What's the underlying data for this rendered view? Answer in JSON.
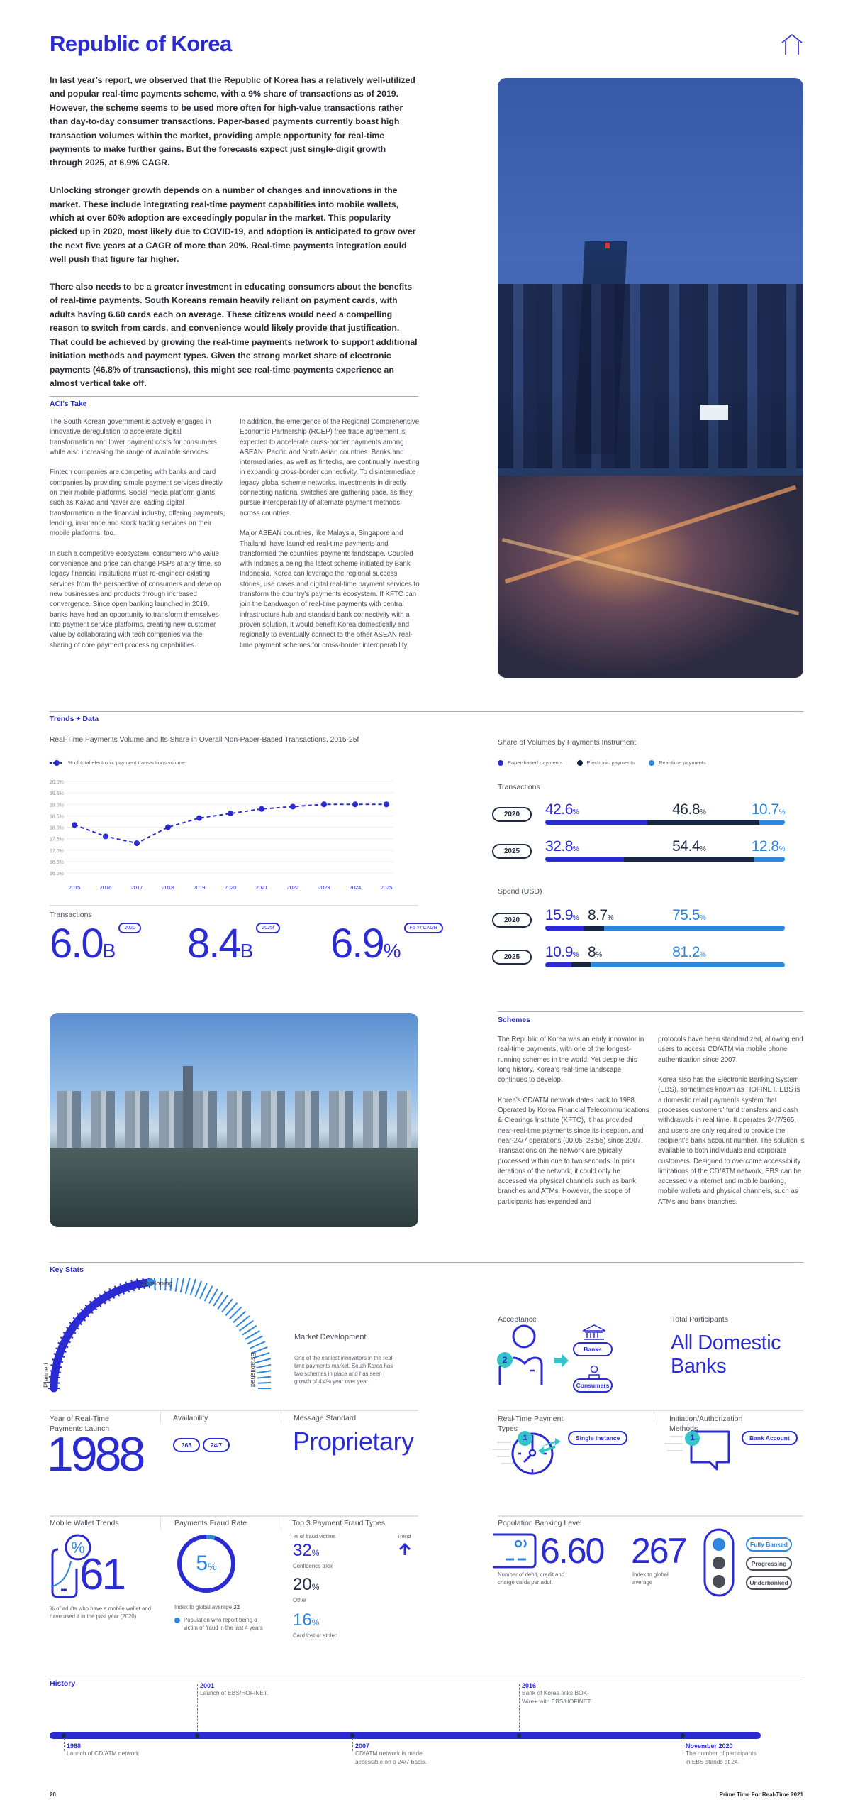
{
  "title": "Republic of Korea",
  "icons": {
    "top_right": "house-outline-icon"
  },
  "intro": [
    "In last year’s report, we observed that the Republic of Korea has a relatively well-utilized and popular real-time payments scheme, with a 9% share of transactions as of 2019. However, the scheme seems to be used more often for high-value transactions rather than day-to-day consumer transactions. Paper-based payments currently boast high transaction volumes within the market, providing ample opportunity for real-time payments to make further gains. But the forecasts expect just single-digit growth through 2025, at 6.9% CAGR.",
    "Unlocking stronger growth depends on a number of changes and innovations in the market. These include integrating real-time payment capabilities into mobile wallets, which at over 60% adoption are exceedingly popular in the market. This popularity picked up in 2020, most likely due to COVID-19, and adoption is anticipated to grow over the next five years at a CAGR of more than 20%. Real-time payments integration could well push that figure far higher.",
    "There also needs to be a greater investment in educating consumers about the benefits of real-time payments. South Koreans remain heavily reliant on payment cards, with adults having 6.60 cards each on average. These citizens would need a compelling reason to switch from cards, and convenience would likely provide that justification. That could be achieved by growing the real-time payments network to support additional initiation methods and payment types. Given the strong market share of electronic payments (46.8% of transactions), this might see real-time payments experience an almost vertical take off."
  ],
  "aci": {
    "heading": "ACI’s Take",
    "col1": [
      "The South Korean government is actively engaged in innovative deregulation to accelerate digital transformation and lower payment costs for consumers, while also increasing the range of available services.",
      "Fintech companies are competing with banks and card companies by providing simple payment services directly on their mobile platforms. Social media platform giants such as Kakao and Naver are leading digital transformation in the financial industry, offering payments, lending, insurance and stock trading services on their mobile platforms, too.",
      "In such a competitive ecosystem, consumers who value convenience and price can change PSPs at any time, so legacy financial institutions must re-engineer existing services from the perspective of consumers and develop new businesses and products through increased convergence. Since open banking launched in 2019, banks have had an opportunity to transform themselves into payment service platforms, creating new customer value by collaborating with tech companies via the sharing of core payment processing capabilities."
    ],
    "col2": [
      "In addition, the emergence of the Regional Comprehensive Economic Partnership (RCEP) free trade agreement is expected to accelerate cross-border payments among ASEAN, Pacific and North Asian countries. Banks and intermediaries, as well as fintechs, are continually investing in expanding cross-border connectivity. To disintermediate legacy global scheme networks, investments in directly connecting national switches are gathering pace, as they pursue interoperability of alternate payment methods across countries.",
      "Major ASEAN countries, like Malaysia, Singapore and Thailand, have launched real-time payments and transformed the countries’ payments landscape. Coupled with Indonesia being the latest scheme initiated by Bank Indonesia, Korea can leverage the regional success stories, use cases and digital real-time payment services to transform the country’s payments ecosystem. If KFTC can join the bandwagon of real-time payments with central infrastructure hub and standard bank connectivity with a proven solution, it would benefit Korea domestically and regionally to eventually connect to the other ASEAN real-time payment schemes for cross-border interoperability."
    ]
  },
  "trends": {
    "heading": "Trends + Data"
  },
  "chart_data": [
    {
      "type": "line",
      "title": "Real-Time Payments Volume and Its Share in Overall Non-Paper-Based Transactions, 2015-25f",
      "x": [
        "2015",
        "2016",
        "2017",
        "2018",
        "2019",
        "2020",
        "2021",
        "2022",
        "2023",
        "2024",
        "2025"
      ],
      "series": [
        {
          "name": "% of total electronic payment transactions volume",
          "values": [
            18.1,
            17.6,
            17.3,
            18.0,
            18.4,
            18.6,
            18.8,
            18.9,
            19.0,
            19.0,
            19.0
          ]
        }
      ],
      "yticks": [
        "20.0%",
        "19.5%",
        "19.0%",
        "18.5%",
        "18.0%",
        "17.5%",
        "17.0%",
        "16.5%",
        "16.0%"
      ],
      "ylim": [
        16.0,
        20.0
      ],
      "grid": true,
      "legend": "top-left",
      "line_style": "dashed",
      "color": "#2b2bd3"
    },
    {
      "type": "bar",
      "stacked": true,
      "orientation": "horizontal",
      "title": "Share of Volumes by Payments Instrument",
      "legend": [
        {
          "name": "Paper-based payments",
          "color": "#2b2bd3"
        },
        {
          "name": "Electronic payments",
          "color": "#172644"
        },
        {
          "name": "Real-time payments",
          "color": "#2e86de"
        }
      ],
      "groups": [
        {
          "name": "Transactions",
          "rows": [
            {
              "year": "2020",
              "values": [
                42.6,
                46.8,
                10.7
              ]
            },
            {
              "year": "2025",
              "values": [
                32.8,
                54.4,
                12.8
              ]
            }
          ]
        },
        {
          "name": "Spend (USD)",
          "rows": [
            {
              "year": "2020",
              "values": [
                15.9,
                8.7,
                75.5
              ]
            },
            {
              "year": "2025",
              "values": [
                10.9,
                8.0,
                81.2
              ]
            }
          ]
        }
      ],
      "unit": "%"
    }
  ],
  "transactions": {
    "label": "Transactions",
    "stats": [
      {
        "value": "6.0",
        "unit": "B",
        "tag": "2020"
      },
      {
        "value": "8.4",
        "unit": "B",
        "tag": "2025f"
      },
      {
        "value": "6.9",
        "unit": "%",
        "tag": "F5 Yr CAGR"
      }
    ]
  },
  "schemes": {
    "heading": "Schemes",
    "col1": [
      "The Republic of Korea was an early innovator in real-time payments, with one of the longest-running schemes in the world. Yet despite this long history, Korea’s real-time landscape continues to develop.",
      "Korea’s CD/ATM network dates back to 1988. Operated by Korea Financial Telecommunications & Clearings Institute (KFTC), it has provided near-real-time payments since its inception, and near-24/7 operations (00:05–23:55) since 2007. Transactions on the network are typically processed within one to two seconds. In prior iterations of the network, it could only be accessed via physical channels such as bank branches and ATMs. However, the scope of participants has expanded and"
    ],
    "col2": [
      "protocols have been standardized, allowing end users to access CD/ATM via mobile phone authentication since 2007.",
      "Korea also has the Electronic Banking System (EBS), sometimes known as HOFINET. EBS is a domestic retail payments system that processes customers’ fund transfers and cash withdrawals in real time. It operates 24/7/365, and users are only required to provide the recipient’s bank account number. The solution is available to both individuals and corporate customers. Designed to overcome accessibility limitations of the CD/ATM network, EBS can be accessed via internet and mobile banking, mobile wallets and physical channels, such as ATMs and bank branches."
    ]
  },
  "key_stats": {
    "heading": "Key Stats",
    "gauge": {
      "labels": {
        "start": "Planned",
        "middle": "Developing",
        "end": "Established"
      },
      "level": 0.47
    },
    "market_development": {
      "label": "Market Development",
      "text": "One of the earliest innovators in the real-time payments market, South Korea has two schemes in place and has seen growth of 4.4% year over year."
    },
    "acceptance": {
      "label": "Acceptance",
      "count": "2",
      "items": [
        "Banks",
        "Consumers"
      ]
    },
    "total_participants": {
      "label": "Total Participants",
      "value": "All Domestic Banks"
    },
    "launch_year": {
      "label": "Year of Real-Time Payments Launch",
      "value": "1988"
    },
    "availability": {
      "label": "Availability",
      "pills": [
        "365",
        "24/7"
      ]
    },
    "message_standard": {
      "label": "Message Standard",
      "value": "Proprietary"
    },
    "payment_types": {
      "label": "Real-Time Payment Types",
      "count": "1",
      "pill": "Single Instance"
    },
    "initiation": {
      "label": "Initiation/Authorization Methods",
      "count": "1",
      "pill": "Bank Account"
    },
    "mobile_wallet": {
      "label": "Mobile Wallet Trends",
      "value": "61",
      "note": "% of adults who have a mobile wallet and have used it in the past year (2020)"
    },
    "fraud_rate": {
      "label": "Payments Fraud Rate",
      "value": "5",
      "unit": "%",
      "fraction": 0.05,
      "index_label": "Index to global average",
      "index_value": "32",
      "legend": "Population who report being a victim of fraud in the last 4 years"
    },
    "fraud_types": {
      "label": "Top 3 Payment Fraud Types",
      "col_label": "% of fraud victims",
      "trend_label": "Trend",
      "trend": "up-arrow-icon",
      "items": [
        {
          "value": "32",
          "name": "Confidence trick"
        },
        {
          "value": "20",
          "name": "Other"
        },
        {
          "value": "16",
          "name": "Card lost or stolen"
        }
      ]
    },
    "banking": {
      "label": "Population Banking Level",
      "cards": "6.60",
      "cards_note": "Number of debit, credit and charge cards per adult",
      "index": "267",
      "index_note": "Index to global average",
      "levels": [
        "Fully Banked",
        "Progressing",
        "Underbanked"
      ],
      "active_level": "Fully Banked"
    }
  },
  "history": {
    "heading": "History",
    "events": [
      {
        "year": "1988",
        "text": "Launch of CD/ATM network."
      },
      {
        "year": "2001",
        "text": "Launch of EBS/HOFINET."
      },
      {
        "year": "2007",
        "text": "CD/ATM network is made accessible on a 24/7 basis."
      },
      {
        "year": "2016",
        "text": "Bank of Korea links BOK-Wire+ with EBS/HOFINET."
      },
      {
        "year": "November 2020",
        "text": "The number of participants in EBS stands at 24."
      }
    ]
  },
  "footer": {
    "page": "20",
    "publication": "Prime Time For Real-Time 2021"
  },
  "colors": {
    "primary": "#2b2bd3",
    "navy": "#172644",
    "light_blue": "#2e86de",
    "teal": "#35c4c9"
  }
}
